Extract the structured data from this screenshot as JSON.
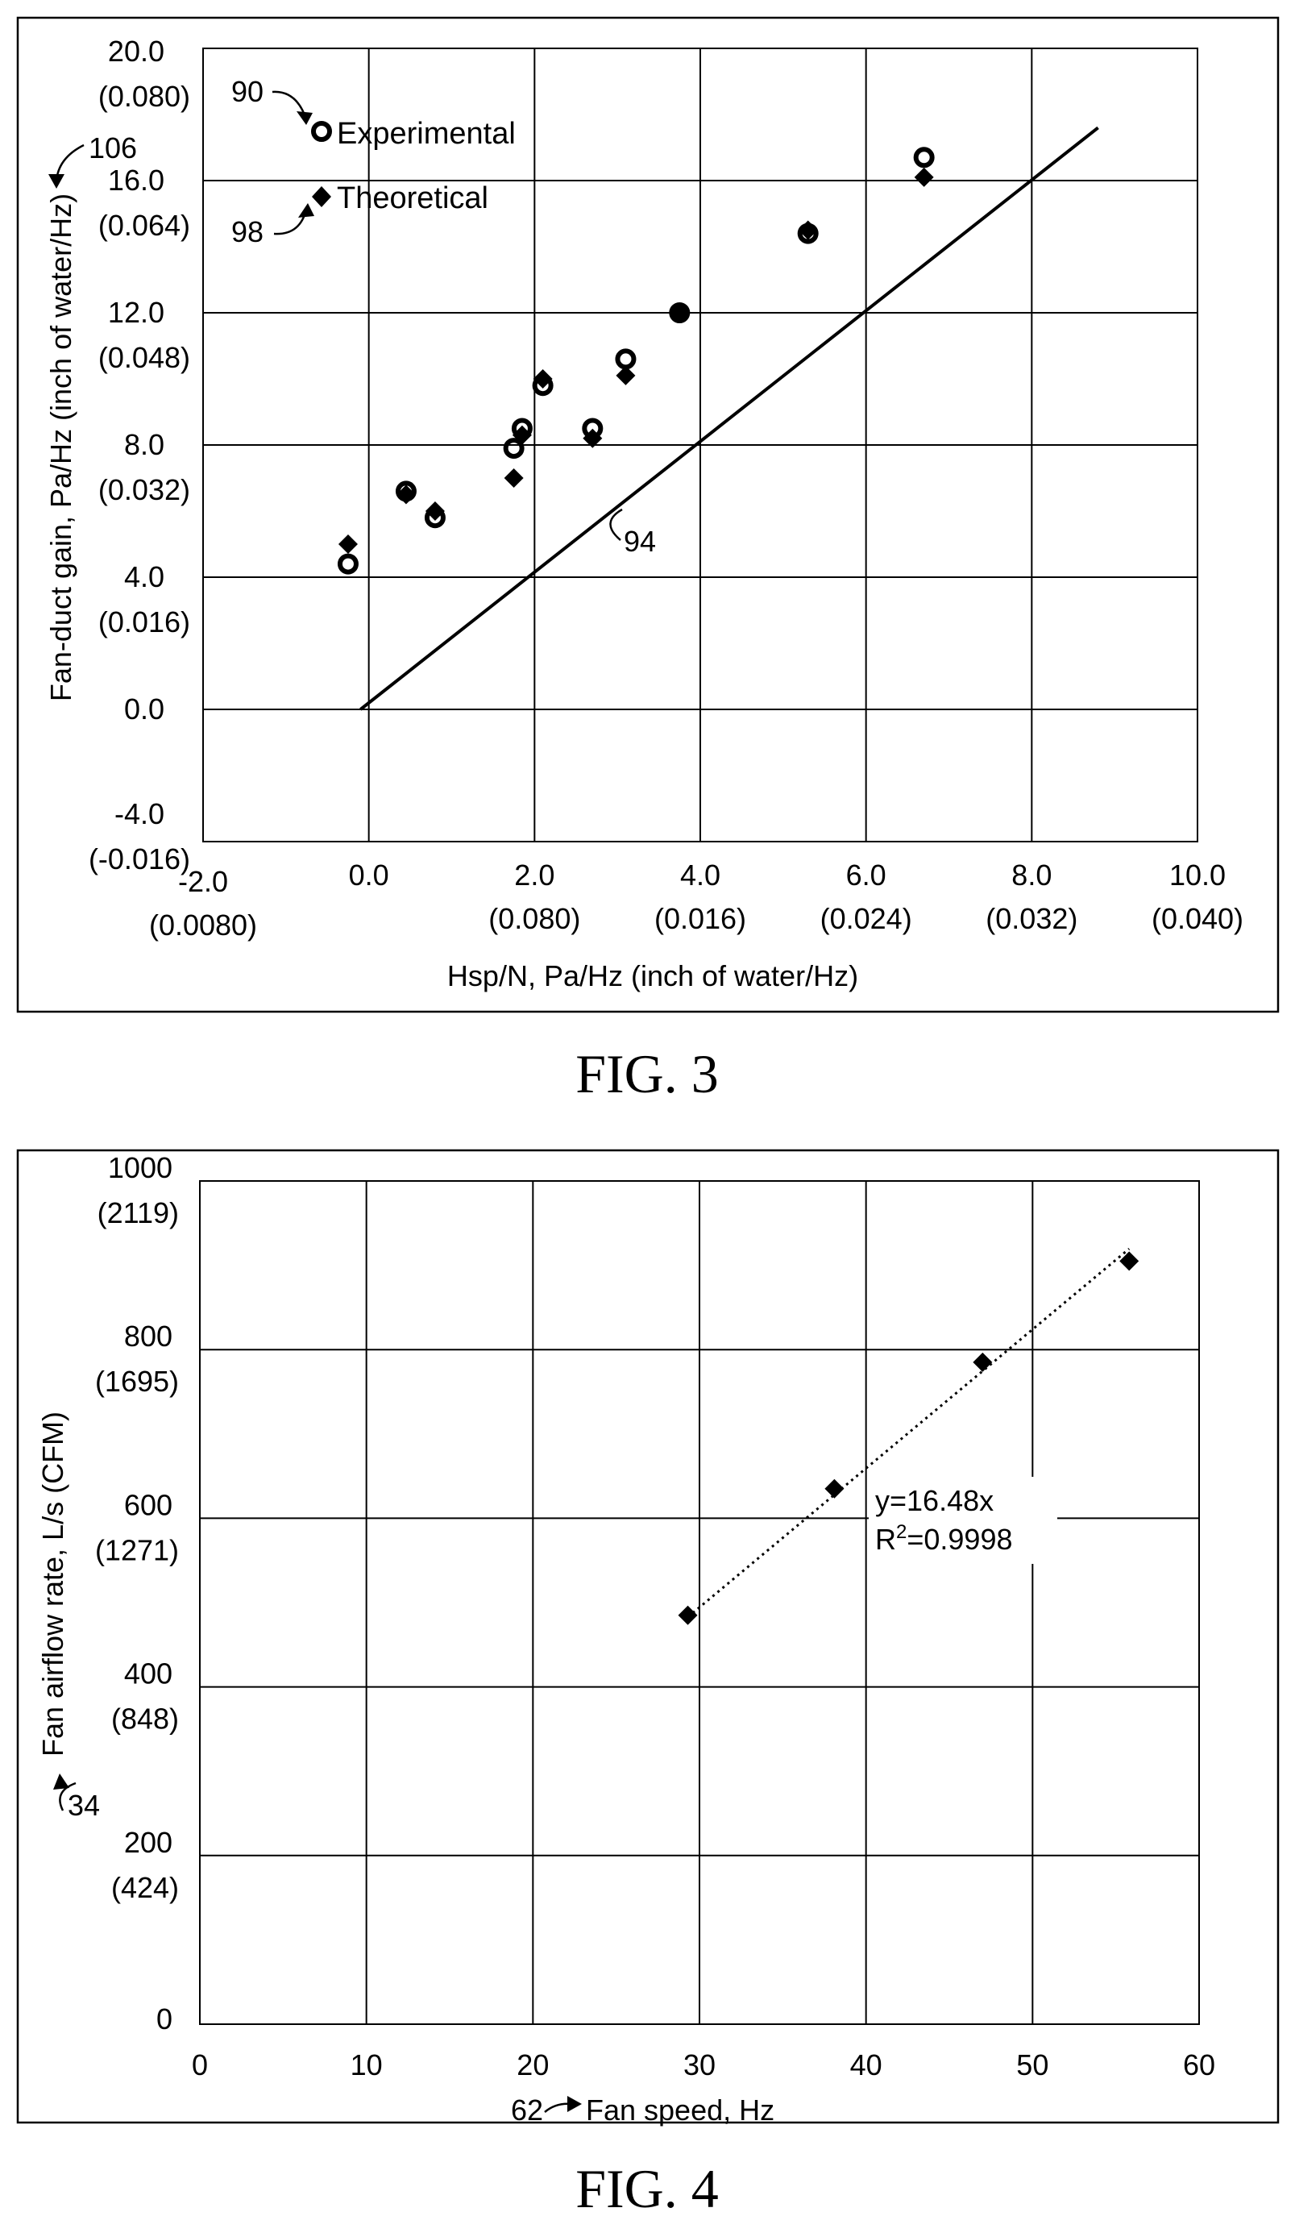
{
  "figures": [
    {
      "caption": "FIG. 3",
      "chart_data": {
        "type": "scatter",
        "xlabel": "Hsp/N, Pa/Hz (inch of water/Hz)",
        "ylabel": "Fan-duct gain, Pa/Hz (inch of water/Hz)",
        "xlim": [
          -2.0,
          10.0
        ],
        "ylim": [
          -4.0,
          20.0
        ],
        "grid": true,
        "legend_position": "top-left",
        "x_ticks": [
          {
            "value": -2.0,
            "label": "-2.0",
            "sub": "(0.0080)"
          },
          {
            "value": 0.0,
            "label": "0.0",
            "sub": ""
          },
          {
            "value": 2.0,
            "label": "2.0",
            "sub": "(0.080)"
          },
          {
            "value": 4.0,
            "label": "4.0",
            "sub": "(0.016)"
          },
          {
            "value": 6.0,
            "label": "6.0",
            "sub": "(0.024)"
          },
          {
            "value": 8.0,
            "label": "8.0",
            "sub": "(0.032)"
          },
          {
            "value": 10.0,
            "label": "10.0",
            "sub": "(0.040)"
          }
        ],
        "y_ticks": [
          {
            "value": 20.0,
            "label": "20.0",
            "sub": "(0.080)"
          },
          {
            "value": 16.0,
            "label": "16.0",
            "sub": "(0.064)"
          },
          {
            "value": 12.0,
            "label": "12.0",
            "sub": "(0.048)"
          },
          {
            "value": 8.0,
            "label": "8.0",
            "sub": "(0.032)"
          },
          {
            "value": 4.0,
            "label": "4.0",
            "sub": "(0.016)"
          },
          {
            "value": 0.0,
            "label": "0.0",
            "sub": ""
          },
          {
            "value": -4.0,
            "label": "-4.0",
            "sub": "(-0.016)"
          }
        ],
        "series": [
          {
            "name": "Experimental",
            "marker": "open-circle",
            "x": [
              -0.25,
              0.45,
              0.8,
              1.75,
              1.85,
              2.1,
              2.7,
              3.1,
              3.75,
              5.3,
              6.7
            ],
            "y": [
              4.4,
              6.6,
              5.8,
              7.9,
              8.5,
              9.8,
              8.5,
              10.6,
              12.0,
              14.4,
              16.7
            ]
          },
          {
            "name": "Theoretical",
            "marker": "filled-diamond",
            "x": [
              -0.25,
              0.45,
              0.8,
              1.75,
              1.85,
              2.1,
              2.7,
              3.1,
              3.75,
              5.3,
              6.7
            ],
            "y": [
              5.0,
              6.5,
              6.0,
              7.0,
              8.3,
              10.0,
              8.2,
              10.1,
              12.0,
              14.5,
              16.1
            ]
          },
          {
            "name": "",
            "marker": "line",
            "x": [
              -0.1,
              8.8
            ],
            "y": [
              0.0,
              17.6
            ]
          }
        ],
        "annotations": [
          {
            "text": "90",
            "target": "Experimental"
          },
          {
            "text": "98",
            "target": "Theoretical"
          },
          {
            "text": "94",
            "target": "line"
          },
          {
            "text": "106",
            "target": "y-axis"
          }
        ]
      }
    },
    {
      "caption": "FIG. 4",
      "chart_data": {
        "type": "scatter",
        "xlabel": "Fan speed, Hz",
        "ylabel": "Fan airflow rate, L/s (CFM)",
        "xlim": [
          0,
          60
        ],
        "ylim": [
          0,
          1000
        ],
        "grid": true,
        "x_ticks": [
          {
            "value": 0,
            "label": "0",
            "sub": ""
          },
          {
            "value": 10,
            "label": "10",
            "sub": ""
          },
          {
            "value": 20,
            "label": "20",
            "sub": ""
          },
          {
            "value": 30,
            "label": "30",
            "sub": ""
          },
          {
            "value": 40,
            "label": "40",
            "sub": ""
          },
          {
            "value": 50,
            "label": "50",
            "sub": ""
          },
          {
            "value": 60,
            "label": "60",
            "sub": ""
          }
        ],
        "y_ticks": [
          {
            "value": 1000,
            "label": "1000",
            "sub": "(2119)"
          },
          {
            "value": 800,
            "label": "800",
            "sub": "(1695)"
          },
          {
            "value": 600,
            "label": "600",
            "sub": "(1271)"
          },
          {
            "value": 400,
            "label": "400",
            "sub": "(848)"
          },
          {
            "value": 200,
            "label": "200",
            "sub": "(424)"
          },
          {
            "value": 0,
            "label": "0",
            "sub": ""
          }
        ],
        "series": [
          {
            "name": "",
            "marker": "filled-diamond",
            "x": [
              29.3,
              38.1,
              47.0,
              55.8
            ],
            "y": [
              485,
              635,
              785,
              905
            ]
          }
        ],
        "trendline": {
          "type": "linear",
          "slope": 16.48,
          "x": [
            29.3,
            55.8
          ],
          "equation": "y=16.48x",
          "r2_prefix": "R",
          "r2_exp": "2",
          "r2_value": "=0.9998"
        },
        "annotations": [
          {
            "text": "34",
            "target": "y-axis"
          },
          {
            "text": "62",
            "target": "x-axis"
          }
        ]
      }
    }
  ]
}
